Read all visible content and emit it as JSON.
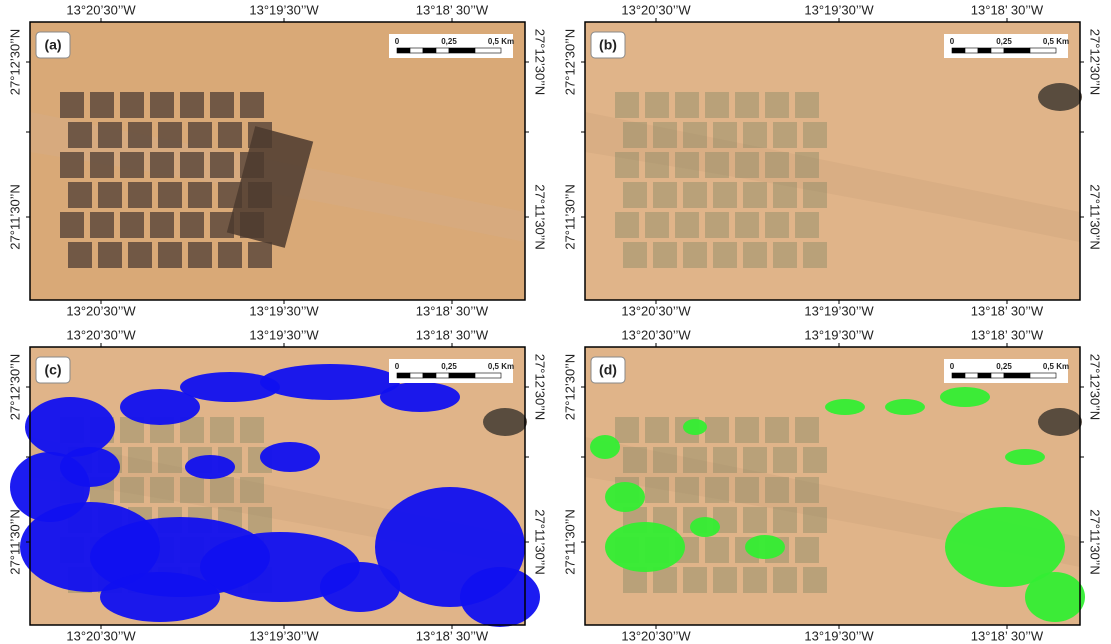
{
  "panels": [
    {
      "label": "(a)",
      "top_labels": [
        "13°20’30’’W",
        "13°19’30’’W",
        "13°18’ 30’’W"
      ],
      "bottom_labels": [
        "13°20’30’’W",
        "13°19’30’’W",
        "13°18’ 30’’W"
      ],
      "left_labels": [
        "27°12’30’’N",
        "27°11’30’’N"
      ],
      "right_labels": [
        "27°12’30’’N",
        "27°11’30’’N"
      ],
      "scale_labels": [
        "0",
        "0,25",
        "0,5 Km"
      ]
    },
    {
      "label": "(b)",
      "top_labels": [
        "13°20’30’’W",
        "13°19’30’’W",
        "13°18’ 30’’W"
      ],
      "bottom_labels": [
        "13°20’30’’W",
        "13°19’30’’W",
        "13°18’ 30’’W"
      ],
      "left_labels": [
        "27°12’30’’N",
        "27°11’30’’N"
      ],
      "right_labels": [
        "27°12’30’’N",
        "27°11’30’’N"
      ],
      "scale_labels": [
        "0",
        "0,25",
        "0,5 Km"
      ]
    },
    {
      "label": "(c)",
      "top_labels": [
        "13°20’30’’W",
        "13°19’30’’W",
        "13°18’ 30’’W"
      ],
      "bottom_labels": [
        "13°20’30’’W",
        "13°19’30’’W",
        "13°18’ 30’’W"
      ],
      "left_labels": [
        "27°12’30’’N",
        "27°11’30’’N"
      ],
      "right_labels": [
        "27°12’30’’N",
        "27°11’30’’N"
      ],
      "scale_labels": [
        "0",
        "0,25",
        "0,5 Km"
      ]
    },
    {
      "label": "(d)",
      "top_labels": [
        "13°20’30’’W",
        "13°19’30’’W",
        "13°18’ 30’’W"
      ],
      "bottom_labels": [
        "13°20’30’’W",
        "13°19’30’’W",
        "13°18’ 30’’W"
      ],
      "left_labels": [
        "27°12’30’’N",
        "27°11’30’’N"
      ],
      "right_labels": [
        "27°12’30’’N",
        "27°11’30’’N"
      ],
      "scale_labels": [
        "0",
        "0,25",
        "0,5 Km"
      ]
    }
  ]
}
